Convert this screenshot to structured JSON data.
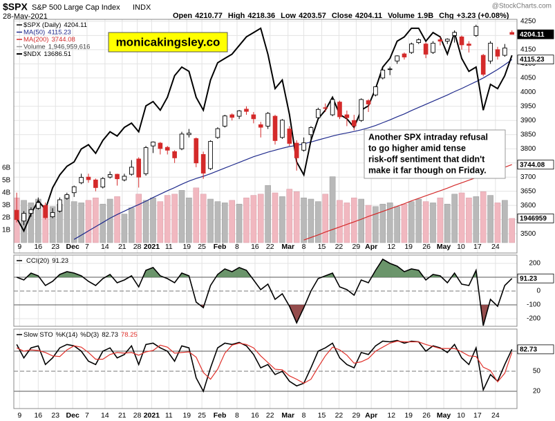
{
  "chart_data": [
    {
      "type": "candlestick",
      "title": "$SPX",
      "subtitle": "S&P 500 Large Cap Index",
      "exchange": "INDX",
      "date": "28-May-2021",
      "source": "@StockCharts.com",
      "quote": [
        {
          "label": "Open",
          "value": 4210.77
        },
        {
          "label": "High",
          "value": 4218.36
        },
        {
          "label": "Low",
          "value": 4203.57
        },
        {
          "label": "Close",
          "value": 4204.11
        },
        {
          "label": "Volume",
          "value": "1.9B"
        },
        {
          "label": "Chg",
          "value": "+3.23 (+0.08%)"
        }
      ],
      "watermark": "monicakingsley.co",
      "annotation": [
        "Another SPX intraday refusal",
        "to go higher amid tense",
        "risk-off sentiment that didn't",
        "make it far though on Friday."
      ],
      "xlim": [
        -0.4,
        69.7
      ],
      "xticks": [
        {
          "value": 0.4,
          "label": "9"
        },
        {
          "value": 3.0,
          "label": "16"
        },
        {
          "value": 5.4,
          "label": "23"
        },
        {
          "value": 7.8,
          "label": "Dec"
        },
        {
          "value": 9.8,
          "label": "7"
        },
        {
          "value": 12.3,
          "label": "14"
        },
        {
          "value": 14.7,
          "label": "21"
        },
        {
          "value": 16.8,
          "label": "28"
        },
        {
          "value": 18.8,
          "label": "2021"
        },
        {
          "value": 21.2,
          "label": "11"
        },
        {
          "value": 23.7,
          "label": "19"
        },
        {
          "value": 25.8,
          "label": "25"
        },
        {
          "value": 28.3,
          "label": "Feb"
        },
        {
          "value": 30.7,
          "label": "8"
        },
        {
          "value": 33.2,
          "label": "16"
        },
        {
          "value": 35.3,
          "label": "22"
        },
        {
          "value": 37.8,
          "label": "Mar"
        },
        {
          "value": 40.0,
          "label": "8"
        },
        {
          "value": 42.5,
          "label": "15"
        },
        {
          "value": 44.9,
          "label": "22"
        },
        {
          "value": 47.3,
          "label": "29"
        },
        {
          "value": 49.4,
          "label": "Apr"
        },
        {
          "value": 52.2,
          "label": "12"
        },
        {
          "value": 54.6,
          "label": "19"
        },
        {
          "value": 57.1,
          "label": "26"
        },
        {
          "value": 59.5,
          "label": "May"
        },
        {
          "value": 61.9,
          "label": "10"
        },
        {
          "value": 64.2,
          "label": "17"
        },
        {
          "value": 66.7,
          "label": "24"
        }
      ],
      "ylim": [
        3432,
        4257
      ],
      "yticks": [
        3500,
        3550,
        3600,
        3650,
        3700,
        3750,
        3800,
        3850,
        3900,
        3950,
        4000,
        4050,
        4100,
        4150,
        4200,
        4250
      ],
      "grid": true,
      "up_color": "#000000",
      "down_color": "#d42a2a",
      "ohlc": [
        [
          3583,
          3645,
          3540,
          3550
        ],
        [
          3545,
          3580,
          3530,
          3572
        ],
        [
          3572,
          3593,
          3560,
          3585
        ],
        [
          3590,
          3628,
          3585,
          3610
        ],
        [
          3600,
          3610,
          3550,
          3557
        ],
        [
          3560,
          3590,
          3555,
          3575
        ],
        [
          3580,
          3628,
          3575,
          3620
        ],
        [
          3625,
          3645,
          3620,
          3638
        ],
        [
          3645,
          3670,
          3630,
          3666
        ],
        [
          3680,
          3712,
          3675,
          3699
        ],
        [
          3700,
          3712,
          3680,
          3691
        ],
        [
          3690,
          3695,
          3650,
          3663
        ],
        [
          3665,
          3700,
          3660,
          3695
        ],
        [
          3700,
          3720,
          3695,
          3709
        ],
        [
          3710,
          3712,
          3670,
          3694
        ],
        [
          3690,
          3712,
          3685,
          3703
        ],
        [
          3710,
          3760,
          3705,
          3735
        ],
        [
          3764,
          3770,
          3663,
          3700
        ],
        [
          3712,
          3810,
          3705,
          3804
        ],
        [
          3810,
          3826,
          3785,
          3824
        ],
        [
          3820,
          3824,
          3780,
          3801
        ],
        [
          3805,
          3810,
          3780,
          3795
        ],
        [
          3790,
          3795,
          3750,
          3768
        ],
        [
          3800,
          3860,
          3795,
          3852
        ],
        [
          3850,
          3870,
          3840,
          3855
        ],
        [
          3836,
          3840,
          3735,
          3750
        ],
        [
          3780,
          3790,
          3694,
          3714
        ],
        [
          3730,
          3830,
          3725,
          3826
        ],
        [
          3840,
          3876,
          3835,
          3871
        ],
        [
          3880,
          3920,
          3875,
          3916
        ],
        [
          3920,
          3925,
          3900,
          3911
        ],
        [
          3915,
          3937,
          3905,
          3934
        ],
        [
          3940,
          3950,
          3920,
          3932
        ],
        [
          3920,
          3930,
          3890,
          3906
        ],
        [
          3885,
          3895,
          3840,
          3876
        ],
        [
          3880,
          3930,
          3870,
          3925
        ],
        [
          3915,
          3920,
          3815,
          3829
        ],
        [
          3840,
          3905,
          3835,
          3901
        ],
        [
          3870,
          3880,
          3810,
          3819
        ],
        [
          3820,
          3830,
          3723,
          3768
        ],
        [
          3795,
          3840,
          3790,
          3821
        ],
        [
          3850,
          3880,
          3830,
          3875
        ],
        [
          3910,
          3945,
          3905,
          3939
        ],
        [
          3945,
          3960,
          3930,
          3943
        ],
        [
          3920,
          3980,
          3915,
          3974
        ],
        [
          3965,
          3970,
          3905,
          3913
        ],
        [
          3920,
          3935,
          3880,
          3910
        ],
        [
          3900,
          3920,
          3865,
          3881
        ],
        [
          3900,
          3978,
          3895,
          3974
        ],
        [
          3970,
          3975,
          3930,
          3958
        ],
        [
          3990,
          4020,
          3985,
          4019
        ],
        [
          4050,
          4083,
          4045,
          4078
        ],
        [
          4080,
          4090,
          4060,
          4082
        ],
        [
          4110,
          4130,
          4100,
          4128
        ],
        [
          4135,
          4140,
          4115,
          4124
        ],
        [
          4140,
          4175,
          4135,
          4170
        ],
        [
          4175,
          4190,
          4170,
          4185
        ],
        [
          4170,
          4175,
          4120,
          4134
        ],
        [
          4140,
          4180,
          4135,
          4173
        ],
        [
          4185,
          4195,
          4165,
          4180
        ],
        [
          4180,
          4190,
          4170,
          4187
        ],
        [
          4200,
          4218,
          4175,
          4211
        ],
        [
          4195,
          4200,
          4150,
          4167
        ],
        [
          4170,
          4180,
          4140,
          4165
        ],
        [
          4200,
          4238,
          4195,
          4232
        ],
        [
          4130,
          4135,
          4056,
          4063
        ],
        [
          4110,
          4180,
          4100,
          4173
        ],
        [
          4150,
          4160,
          4115,
          4127
        ],
        [
          4130,
          4170,
          4125,
          4156
        ],
        [
          4210.77,
          4218.36,
          4203.57,
          4204.11
        ]
      ],
      "series": [
        {
          "name": "$SPX (Daily)",
          "color": "#000000"
        },
        {
          "name": "MA(50)",
          "color": "#1f2a8c",
          "values": [
            null,
            null,
            null,
            null,
            null,
            null,
            null,
            null,
            3480,
            3495,
            3510,
            3525,
            3540,
            3555,
            3568,
            3580,
            3592,
            3603,
            3615,
            3628,
            3640,
            3652,
            3663,
            3675,
            3686,
            3695,
            3703,
            3712,
            3722,
            3732,
            3742,
            3752,
            3762,
            3772,
            3780,
            3788,
            3795,
            3802,
            3808,
            3812,
            3818,
            3824,
            3831,
            3838,
            3845,
            3851,
            3856,
            3861,
            3867,
            3874,
            3882,
            3892,
            3902,
            3913,
            3923,
            3935,
            3946,
            3957,
            3968,
            3979,
            3990,
            4002,
            4013,
            4025,
            4037,
            4050,
            4065,
            4080,
            4097,
            4115.23
          ]
        },
        {
          "name": "MA(200)",
          "color": "#d42a2a",
          "values": [
            null,
            null,
            null,
            null,
            null,
            null,
            null,
            null,
            null,
            null,
            null,
            null,
            null,
            null,
            null,
            null,
            null,
            null,
            null,
            null,
            null,
            null,
            null,
            null,
            null,
            null,
            null,
            null,
            null,
            null,
            null,
            null,
            null,
            null,
            null,
            null,
            null,
            null,
            null,
            null,
            3478,
            3487,
            3496,
            3506,
            3515,
            3524,
            3533,
            3542,
            3551,
            3561,
            3570,
            3579,
            3588,
            3597,
            3606,
            3616,
            3625,
            3634,
            3643,
            3652,
            3661,
            3671,
            3680,
            3689,
            3698,
            3707,
            3716,
            3726,
            3735,
            3744.08
          ]
        },
        {
          "name": "$NDX",
          "color": "#000000",
          "axis": "y3",
          "values": [
            11800,
            11650,
            11850,
            12000,
            11900,
            12150,
            12300,
            12400,
            12450,
            12600,
            12650,
            12550,
            12700,
            12800,
            12750,
            12850,
            12900,
            12800,
            13100,
            13150,
            13050,
            13200,
            13450,
            13550,
            13500,
            13200,
            13050,
            13400,
            13600,
            13650,
            13700,
            13800,
            13900,
            13950,
            14000,
            13700,
            13300,
            13400,
            13000,
            12450,
            12300,
            12700,
            12950,
            13050,
            13200,
            13000,
            12950,
            12850,
            13050,
            13100,
            13300,
            13550,
            13650,
            13850,
            13900,
            14000,
            14000,
            13850,
            13950,
            13900,
            13700,
            13950,
            13650,
            13500,
            13550,
            13050,
            13350,
            13300,
            13450,
            13686.51
          ]
        }
      ],
      "y3lim": [
        11394,
        14103
      ],
      "volume": {
        "name": "Volume",
        "legend_label": "1,946,959,616",
        "tag_label": "1946959",
        "up_color": "#b9b9b9",
        "down_color": "#f1b8c0",
        "ylim": [
          0,
          17.94
        ],
        "yticks": [
          {
            "value": 1,
            "label": "1B"
          },
          {
            "value": 2,
            "label": "2B"
          },
          {
            "value": 3,
            "label": "3B"
          },
          {
            "value": 4,
            "label": "4B"
          },
          {
            "value": 5,
            "label": "5B"
          },
          {
            "value": 6,
            "label": "6B"
          }
        ],
        "values": [
          3.6,
          3.4,
          3.2,
          3.5,
          3.0,
          2.9,
          3.1,
          3.8,
          3.3,
          3.2,
          3.4,
          3.6,
          3.1,
          3.5,
          3.7,
          2.3,
          2.8,
          3.9,
          3.4,
          3.6,
          3.3,
          3.8,
          3.9,
          4.2,
          3.6,
          4.4,
          3.9,
          3.5,
          3.3,
          3.2,
          3.4,
          3.1,
          3.6,
          3.8,
          3.9,
          4.6,
          4.0,
          3.7,
          4.3,
          4.1,
          3.6,
          3.5,
          3.3,
          3.9,
          5.3,
          3.4,
          3.2,
          3.6,
          3.5,
          3.0,
          2.9,
          3.1,
          3.2,
          2.9,
          3.1,
          3.3,
          3.5,
          3.3,
          3.2,
          3.6,
          3.1,
          3.9,
          4.0,
          3.6,
          3.7,
          4.1,
          3.8,
          3.2,
          3.4,
          1.946959616
        ]
      }
    },
    {
      "type": "line",
      "ylim": [
        -255,
        260
      ],
      "yticks": [
        -200,
        -100,
        0,
        100,
        200
      ],
      "levels": [
        -100,
        100
      ],
      "midline": 0,
      "fill_colors": [
        "#8a3a3a",
        "#5b8a5b"
      ],
      "series": [
        {
          "name": "CCI(20)",
          "color": "#000000",
          "values": [
            100,
            80,
            130,
            110,
            40,
            70,
            120,
            140,
            130,
            110,
            70,
            40,
            90,
            120,
            60,
            80,
            110,
            30,
            150,
            170,
            110,
            90,
            60,
            130,
            110,
            -80,
            -120,
            40,
            120,
            160,
            140,
            170,
            150,
            80,
            10,
            50,
            -60,
            -20,
            -110,
            -230,
            -120,
            0,
            90,
            110,
            130,
            30,
            10,
            -30,
            80,
            60,
            150,
            230,
            200,
            180,
            140,
            160,
            150,
            80,
            120,
            110,
            60,
            130,
            50,
            40,
            150,
            -250,
            -60,
            -110,
            40,
            91.23
          ]
        }
      ]
    },
    {
      "type": "line",
      "title": "Slow STO",
      "ylim": [
        -5.9,
        113.1
      ],
      "yticks": [
        20,
        50,
        80
      ],
      "levels": [
        20,
        80
      ],
      "midline": 50,
      "series": [
        {
          "name": "%K(14)",
          "color": "#000000",
          "values": [
            90,
            70,
            85,
            88,
            60,
            70,
            85,
            90,
            88,
            80,
            65,
            60,
            80,
            85,
            70,
            75,
            88,
            60,
            90,
            92,
            85,
            80,
            65,
            88,
            85,
            40,
            20,
            55,
            85,
            92,
            90,
            93,
            88,
            75,
            55,
            60,
            45,
            50,
            35,
            28,
            32,
            55,
            80,
            85,
            92,
            70,
            60,
            55,
            78,
            75,
            88,
            95,
            94,
            96,
            92,
            95,
            94,
            80,
            88,
            85,
            78,
            90,
            70,
            60,
            85,
            22,
            45,
            35,
            60,
            82.73
          ]
        },
        {
          "name": "%D(3)",
          "color": "#e0302a",
          "values": [
            85,
            80,
            82,
            81,
            78,
            73,
            72,
            82,
            88,
            86,
            78,
            68,
            68,
            75,
            78,
            77,
            78,
            74,
            79,
            81,
            89,
            86,
            77,
            78,
            79,
            71,
            48,
            38,
            53,
            77,
            89,
            92,
            90,
            85,
            73,
            63,
            53,
            52,
            43,
            38,
            32,
            38,
            56,
            73,
            86,
            82,
            74,
            62,
            64,
            69,
            80,
            86,
            92,
            95,
            94,
            94,
            94,
            90,
            87,
            84,
            84,
            84,
            79,
            73,
            72,
            56,
            51,
            34,
            47,
            78.25
          ]
        }
      ]
    }
  ]
}
